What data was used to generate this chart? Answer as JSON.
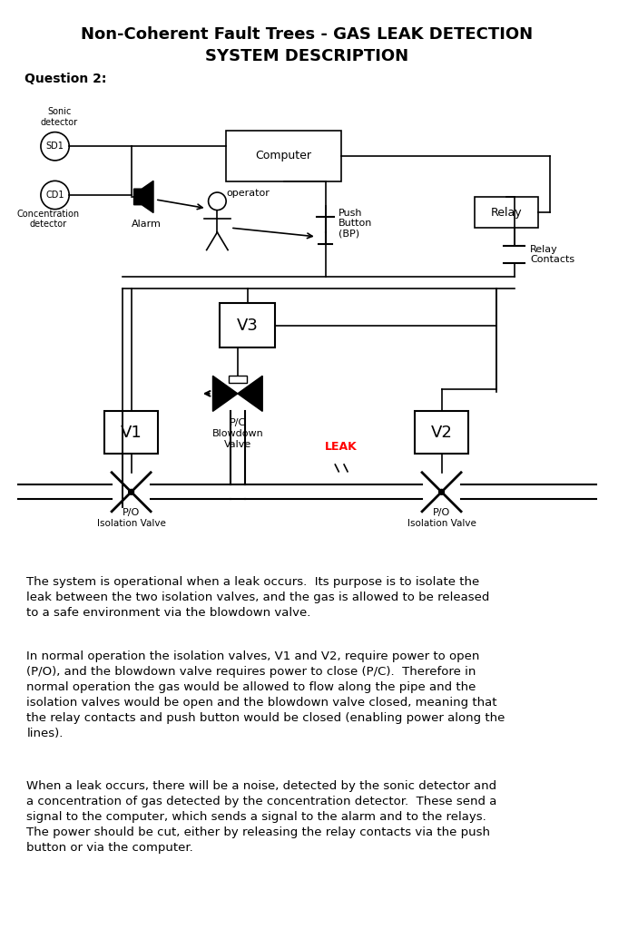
{
  "title_line1": "Non-Coherent Fault Trees - GAS LEAK DETECTION",
  "title_line2": "SYSTEM DESCRIPTION",
  "question": "Question 2:",
  "paragraph1": "The system is operational when a leak occurs.  Its purpose is to isolate the\nleak between the two isolation valves, and the gas is allowed to be released\nto a safe environment via the blowdown valve.",
  "paragraph2": "In normal operation the isolation valves, V1 and V2, require power to open\n(P/O), and the blowdown valve requires power to close (P/C).  Therefore in\nnormal operation the gas would be allowed to flow along the pipe and the\nisolation valves would be open and the blowdown valve closed, meaning that\nthe relay contacts and push button would be closed (enabling power along the\nlines).",
  "paragraph3": "When a leak occurs, there will be a noise, detected by the sonic detector and\na concentration of gas detected by the concentration detector.  These send a\nsignal to the computer, which sends a signal to the alarm and to the relays.\nThe power should be cut, either by releasing the relay contacts via the push\nbutton or via the computer.",
  "bg_color": "#ffffff",
  "text_color": "#000000",
  "red_color": "#ff0000"
}
